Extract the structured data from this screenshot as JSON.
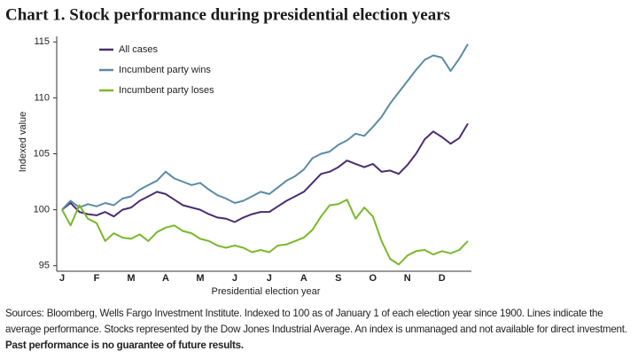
{
  "chart_data": {
    "type": "line",
    "title": "Chart 1. Stock performance during presidential election years",
    "ylabel": "Indexed value",
    "xlabel": "Presidential election year",
    "categories": [
      "J",
      null,
      null,
      null,
      "F",
      null,
      null,
      null,
      "M",
      null,
      null,
      null,
      "A",
      null,
      null,
      null,
      "M",
      null,
      null,
      null,
      "J",
      null,
      null,
      null,
      "J",
      null,
      null,
      null,
      "A",
      null,
      null,
      null,
      "S",
      null,
      null,
      null,
      "O",
      null,
      null,
      null,
      "N",
      null,
      null,
      null,
      "D",
      null,
      null,
      null
    ],
    "series": [
      {
        "name": "All cases",
        "color": "#4b2e6e",
        "values": [
          100,
          100.6,
          99.8,
          99.6,
          99.5,
          99.8,
          99.4,
          100,
          100.2,
          100.8,
          101.2,
          101.6,
          101.4,
          100.9,
          100.4,
          100.2,
          100,
          99.6,
          99.3,
          99.2,
          98.9,
          99.3,
          99.6,
          99.8,
          99.8,
          100.3,
          100.8,
          101.2,
          101.6,
          102.4,
          103.2,
          103.4,
          103.8,
          104.4,
          104.1,
          103.8,
          104.1,
          103.4,
          103.5,
          103.2,
          104,
          105,
          106.3,
          107,
          106.5,
          105.9,
          106.4,
          107.7
        ]
      },
      {
        "name": "Incumbent party wins",
        "color": "#5b8ba6",
        "values": [
          100,
          100.8,
          100.2,
          100.5,
          100.3,
          100.6,
          100.4,
          101,
          101.2,
          101.8,
          102.2,
          102.6,
          103.4,
          102.8,
          102.5,
          102.2,
          102.4,
          101.8,
          101.3,
          101,
          100.6,
          100.8,
          101.2,
          101.6,
          101.4,
          102,
          102.6,
          103,
          103.6,
          104.6,
          105,
          105.2,
          105.8,
          106.2,
          106.8,
          106.6,
          107.4,
          108.3,
          109.5,
          110.5,
          111.5,
          112.5,
          113.4,
          113.8,
          113.6,
          112.4,
          113.5,
          114.8
        ]
      },
      {
        "name": "Incumbent party loses",
        "color": "#7ab82c",
        "values": [
          100,
          98.6,
          100.4,
          99.2,
          98.8,
          97.2,
          97.9,
          97.5,
          97.4,
          97.8,
          97.2,
          98,
          98.4,
          98.6,
          98.1,
          97.9,
          97.4,
          97.2,
          96.8,
          96.6,
          96.8,
          96.6,
          96.2,
          96.4,
          96.2,
          96.8,
          96.9,
          97.2,
          97.5,
          98.2,
          99.4,
          100.4,
          100.5,
          100.9,
          99.2,
          100.2,
          99.4,
          97.2,
          95.6,
          95.1,
          95.9,
          96.3,
          96.4,
          96,
          96.3,
          96.1,
          96.4,
          97.2
        ]
      }
    ],
    "ylim": [
      94.5,
      115.5
    ],
    "yticks": [
      95,
      100,
      105,
      110,
      115
    ],
    "grid": false,
    "legend": "top-left",
    "source": "Sources: Bloomberg, Wells Fargo Investment Institute. Indexed to 100 as of January 1 of each election year since 1900. Lines indicate the average performance. Stocks represented by the Dow Jones Industrial Average.  An index is unmanaged and not available for direct investment. ",
    "source_emphasis": "Past performance is no guarantee of future results."
  }
}
